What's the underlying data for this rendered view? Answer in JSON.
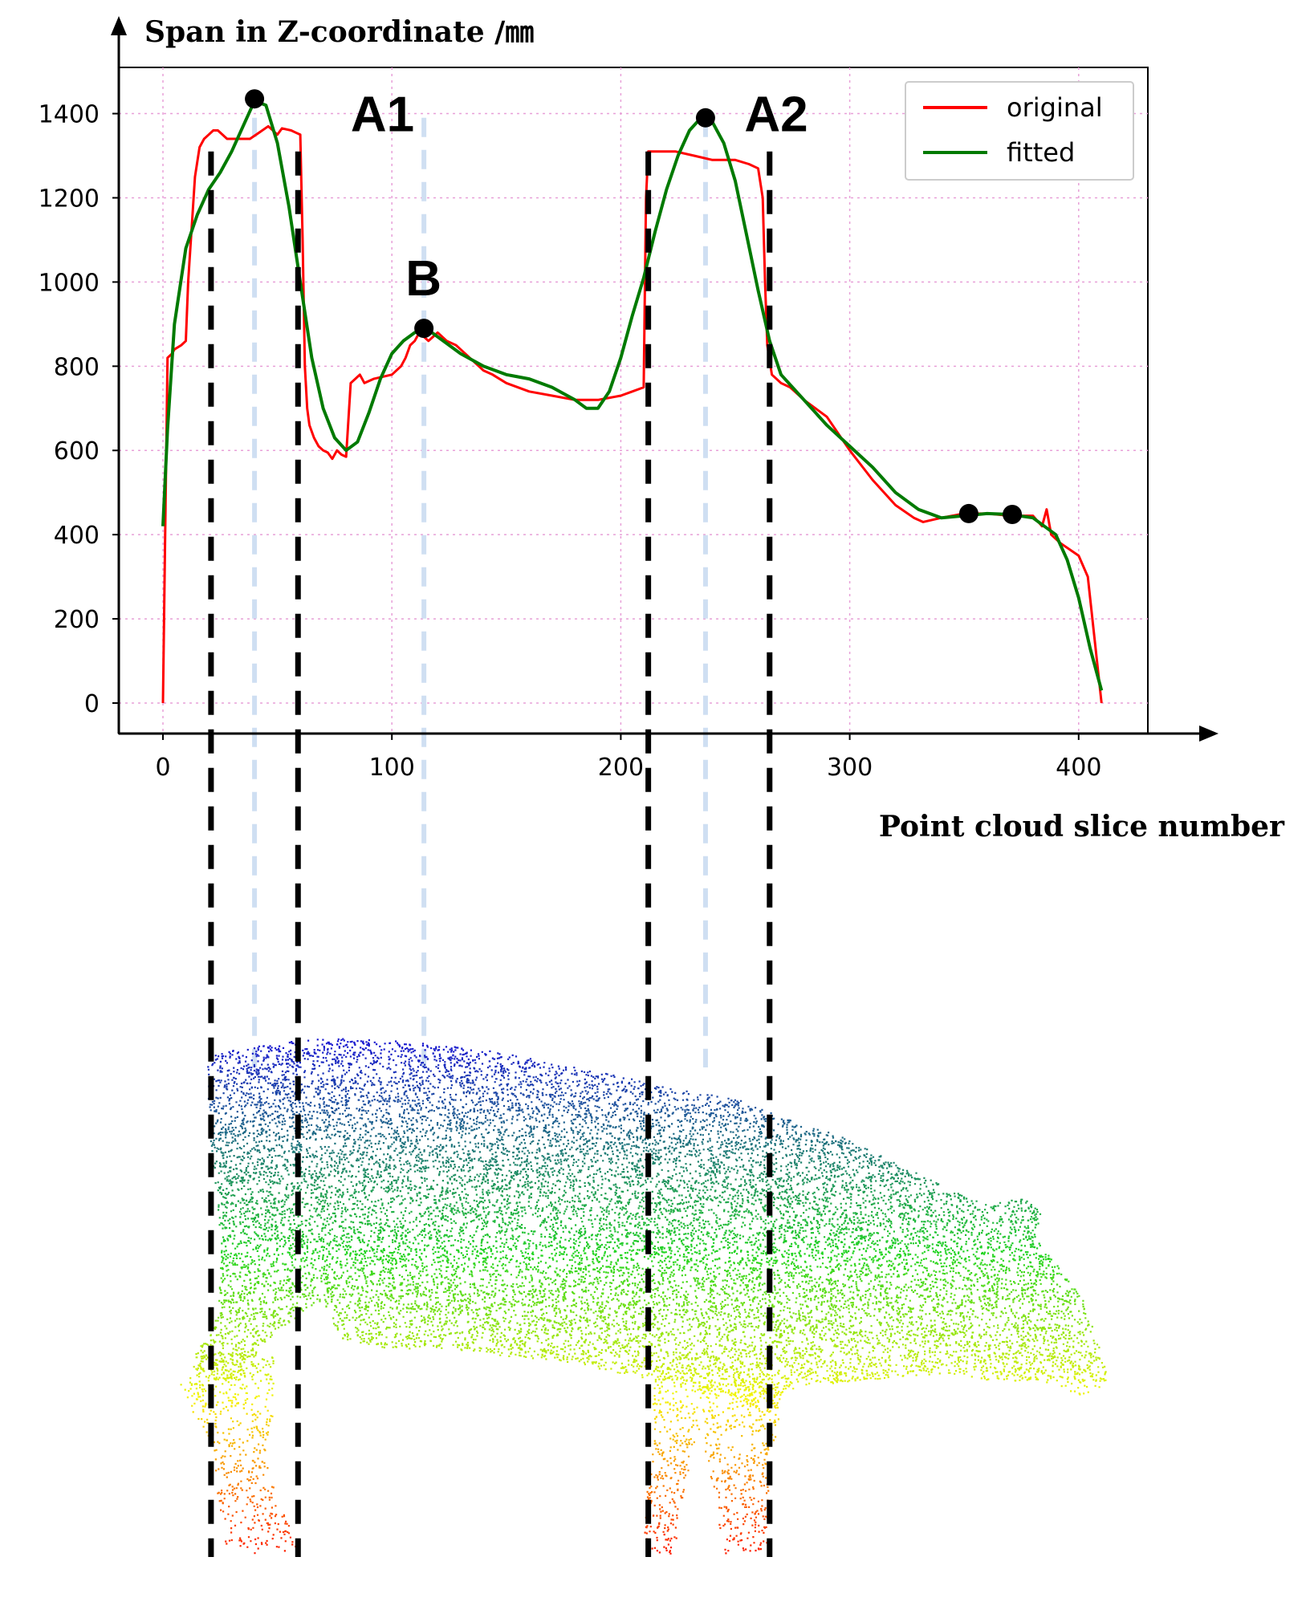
{
  "colors": {
    "original": "#ff0000",
    "fitted": "#007a00",
    "grid": "#e8a0d8",
    "guide_black": "#000000",
    "guide_light": "#cfdff2",
    "cloud_top": "#1a1ad0",
    "cloud_mid": "#22d422",
    "cloud_low": "#f4f400",
    "cloud_bottom": "#ff0000"
  },
  "chart_data": {
    "type": "line",
    "title": "",
    "ylabel": "Span in Z-coordinate ∕㎜",
    "xlabel": "Point cloud slice number",
    "xlim": [
      -20,
      430
    ],
    "ylim": [
      -60,
      1500
    ],
    "xticks": [
      0,
      100,
      200,
      300,
      400
    ],
    "yticks": [
      0,
      200,
      400,
      600,
      800,
      1000,
      1200,
      1400
    ],
    "grid": true,
    "legend_position": "top-right",
    "series": [
      {
        "name": "original",
        "x": [
          0,
          1,
          2,
          4,
          5,
          8,
          10,
          11,
          14,
          16,
          18,
          20,
          22,
          24,
          28,
          32,
          38,
          42,
          46,
          48,
          50,
          52,
          56,
          58,
          60,
          61,
          62,
          63,
          64,
          66,
          68,
          70,
          72,
          74,
          76,
          78,
          80,
          82,
          84,
          86,
          88,
          92,
          96,
          100,
          104,
          106,
          108,
          110,
          112,
          114,
          116,
          118,
          120,
          124,
          128,
          130,
          134,
          140,
          144,
          150,
          160,
          170,
          180,
          190,
          200,
          205,
          210,
          211,
          212,
          216,
          224,
          232,
          240,
          250,
          256,
          260,
          262,
          263,
          264,
          266,
          270,
          274,
          280,
          290,
          300,
          310,
          320,
          328,
          332,
          340,
          350,
          360,
          370,
          380,
          384,
          386,
          388,
          392,
          400,
          404,
          406,
          408,
          410
        ],
        "values": [
          0,
          420,
          820,
          830,
          840,
          850,
          860,
          1000,
          1250,
          1320,
          1340,
          1350,
          1360,
          1360,
          1340,
          1340,
          1340,
          1355,
          1370,
          1360,
          1350,
          1365,
          1360,
          1355,
          1350,
          1100,
          800,
          700,
          660,
          630,
          610,
          600,
          595,
          580,
          600,
          590,
          585,
          760,
          770,
          780,
          760,
          770,
          775,
          780,
          800,
          820,
          850,
          860,
          880,
          870,
          860,
          870,
          880,
          860,
          850,
          840,
          820,
          790,
          780,
          760,
          740,
          730,
          720,
          720,
          730,
          740,
          750,
          1200,
          1310,
          1310,
          1310,
          1300,
          1290,
          1290,
          1280,
          1270,
          1200,
          1000,
          850,
          780,
          760,
          750,
          720,
          680,
          600,
          530,
          470,
          440,
          430,
          440,
          450,
          450,
          445,
          445,
          420,
          460,
          400,
          380,
          350,
          300,
          200,
          100,
          0
        ]
      },
      {
        "name": "fitted",
        "x": [
          0,
          2,
          5,
          10,
          15,
          20,
          25,
          30,
          35,
          40,
          45,
          50,
          55,
          60,
          65,
          70,
          75,
          80,
          85,
          90,
          95,
          100,
          105,
          110,
          115,
          120,
          130,
          140,
          150,
          160,
          170,
          180,
          185,
          190,
          195,
          200,
          205,
          210,
          215,
          220,
          225,
          230,
          235,
          240,
          245,
          250,
          255,
          260,
          265,
          270,
          280,
          290,
          300,
          310,
          320,
          330,
          340,
          350,
          360,
          370,
          380,
          390,
          395,
          400,
          405,
          410
        ],
        "values": [
          420,
          650,
          900,
          1080,
          1160,
          1220,
          1260,
          1310,
          1370,
          1430,
          1420,
          1330,
          1180,
          1000,
          820,
          700,
          630,
          600,
          620,
          690,
          770,
          830,
          860,
          880,
          890,
          870,
          830,
          800,
          780,
          770,
          750,
          720,
          700,
          700,
          740,
          820,
          920,
          1010,
          1120,
          1220,
          1300,
          1360,
          1390,
          1380,
          1330,
          1240,
          1110,
          980,
          860,
          780,
          720,
          660,
          610,
          560,
          500,
          460,
          440,
          445,
          450,
          448,
          440,
          400,
          340,
          250,
          130,
          30
        ]
      }
    ],
    "markers": [
      {
        "x": 40,
        "y": 1435
      },
      {
        "x": 114,
        "y": 890
      },
      {
        "x": 237,
        "y": 1390
      },
      {
        "x": 352,
        "y": 450
      },
      {
        "x": 371,
        "y": 448
      }
    ],
    "annotations": [
      {
        "text": "A1",
        "x": 82,
        "y": 1400
      },
      {
        "text": "B",
        "x": 106,
        "y": 1010
      },
      {
        "text": "A2",
        "x": 254,
        "y": 1400
      }
    ],
    "black_guides_x": [
      21,
      59,
      212,
      265
    ],
    "light_guides_x": [
      40,
      114,
      237
    ]
  }
}
